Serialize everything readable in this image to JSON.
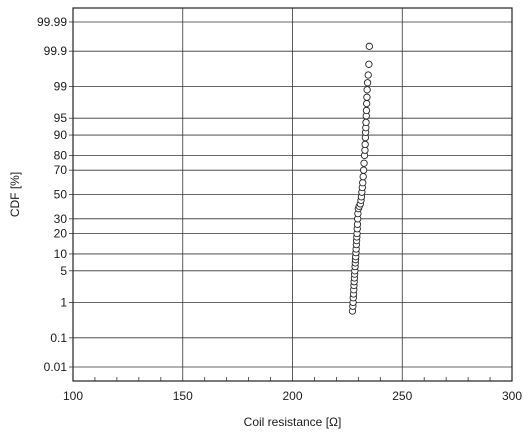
{
  "chart_data": {
    "type": "scatter",
    "title": "",
    "xlabel": "Coil resistance [Ω]",
    "ylabel": "CDF  [%]",
    "xlim": [
      100,
      300
    ],
    "x_ticks": [
      100,
      150,
      200,
      250,
      300
    ],
    "x_tick_labels": [
      "100",
      "150",
      "200",
      "250",
      "300"
    ],
    "y_scale": "normal-probability",
    "y_ticks": [
      0.01,
      0.1,
      1,
      5,
      10,
      20,
      30,
      50,
      70,
      80,
      90,
      95,
      99,
      99.9,
      99.99
    ],
    "y_tick_labels": [
      "0.01",
      "0.1",
      "1",
      "5",
      "10",
      "20",
      "30",
      "50",
      "70",
      "80",
      "90",
      "95",
      "99",
      "99.9",
      "99.99"
    ],
    "grid": true,
    "marker": "open-circle",
    "marker_color": "#222222",
    "series": [
      {
        "name": "",
        "points": [
          [
            227.3,
            0.6
          ],
          [
            227.5,
            0.8
          ],
          [
            227.6,
            1.0
          ],
          [
            227.7,
            1.3
          ],
          [
            227.8,
            1.6
          ],
          [
            227.9,
            2.0
          ],
          [
            228.0,
            2.5
          ],
          [
            228.1,
            3.0
          ],
          [
            228.2,
            3.6
          ],
          [
            228.3,
            4.3
          ],
          [
            228.4,
            5.0
          ],
          [
            228.5,
            6.0
          ],
          [
            228.6,
            7.0
          ],
          [
            228.7,
            8.0
          ],
          [
            228.8,
            9.0
          ],
          [
            228.9,
            10.5
          ],
          [
            229.0,
            12.0
          ],
          [
            229.1,
            14.0
          ],
          [
            229.2,
            16.0
          ],
          [
            229.3,
            18.0
          ],
          [
            229.4,
            20.0
          ],
          [
            229.5,
            23.0
          ],
          [
            229.6,
            26.0
          ],
          [
            229.7,
            30.0
          ],
          [
            229.8,
            34.0
          ],
          [
            230.0,
            38.0
          ],
          [
            230.4,
            40.0
          ],
          [
            230.9,
            42.0
          ],
          [
            231.2,
            45.0
          ],
          [
            231.4,
            48.0
          ],
          [
            231.6,
            52.0
          ],
          [
            231.8,
            56.0
          ],
          [
            232.0,
            60.0
          ],
          [
            232.2,
            65.0
          ],
          [
            232.4,
            70.0
          ],
          [
            232.6,
            75.0
          ],
          [
            232.8,
            80.0
          ],
          [
            233.0,
            83.0
          ],
          [
            233.1,
            86.0
          ],
          [
            233.2,
            89.0
          ],
          [
            233.3,
            91.0
          ],
          [
            233.4,
            92.5
          ],
          [
            233.5,
            94.0
          ],
          [
            233.6,
            95.5
          ],
          [
            233.7,
            96.5
          ],
          [
            233.8,
            97.5
          ],
          [
            233.9,
            98.2
          ],
          [
            234.0,
            98.8
          ],
          [
            234.2,
            99.2
          ],
          [
            234.5,
            99.5
          ],
          [
            234.8,
            99.75
          ],
          [
            235.0,
            99.93
          ]
        ]
      }
    ]
  }
}
